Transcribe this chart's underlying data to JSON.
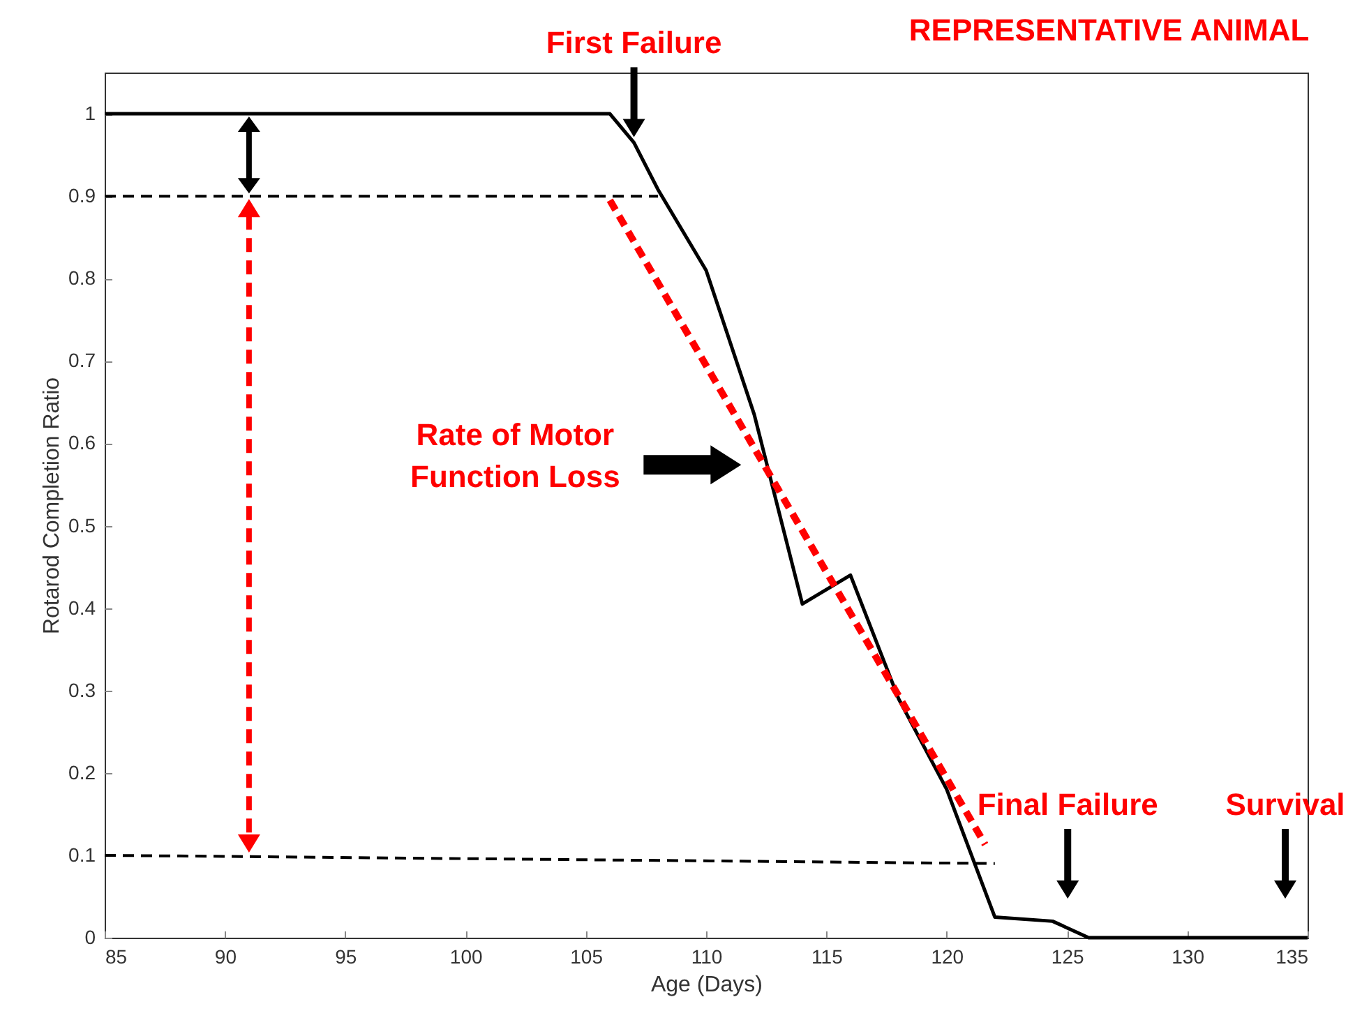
{
  "chart_data": {
    "type": "line",
    "title": "REPRESENTATIVE ANIMAL",
    "xlabel": "Age (Days)",
    "ylabel": "Rotarod Completion Ratio",
    "xlim": [
      85,
      135
    ],
    "xticks": [
      85,
      90,
      95,
      100,
      105,
      110,
      115,
      120,
      125,
      130,
      135
    ],
    "ylim": [
      0,
      1.05
    ],
    "yticks": [
      0,
      0.1,
      0.2,
      0.3,
      0.4,
      0.5,
      0.6,
      0.7,
      0.8,
      0.9,
      1
    ],
    "grid": false,
    "series": [
      {
        "color": "#000000",
        "line_style": "solid",
        "x": [
          85,
          106,
          107,
          108,
          110,
          112,
          114,
          116,
          118,
          120,
          122,
          124.4,
          125.9,
          135
        ],
        "values": [
          1,
          1,
          0.965,
          0.908,
          0.81,
          0.635,
          0.405,
          0.44,
          0.29,
          0.18,
          0.025,
          0.02,
          0,
          0
        ]
      },
      {
        "color": "#000000",
        "line_style": "dashed",
        "x": [
          85,
          108
        ],
        "values": [
          0.9,
          0.9
        ]
      },
      {
        "color": "#000000",
        "line_style": "dashed",
        "x": [
          85,
          122
        ],
        "values": [
          0.1,
          0.09
        ]
      },
      {
        "color": "#ff0000",
        "line_style": "dashed",
        "x": [
          106,
          121.6
        ],
        "values": [
          0.895,
          0.113
        ]
      }
    ],
    "annotations": [
      {
        "text": "First Failure",
        "x": 107,
        "y": 0.965
      },
      "Final Failure",
      "Survival",
      "Rate of Motor Function Loss"
    ]
  }
}
